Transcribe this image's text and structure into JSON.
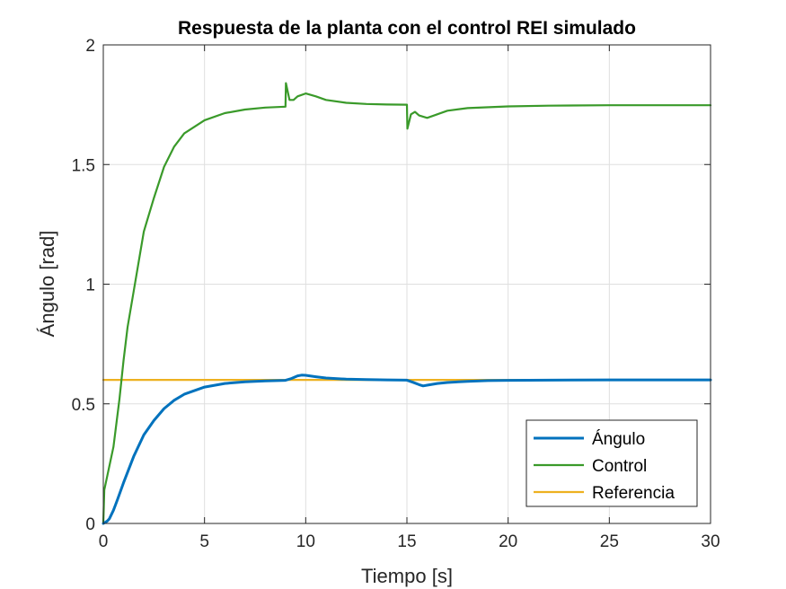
{
  "chart_data": {
    "type": "line",
    "title": "Respuesta de la planta con el control REI simulado",
    "xlabel": "Tiempo [s]",
    "ylabel": "Ángulo [rad]",
    "xlim": [
      0,
      30
    ],
    "ylim": [
      0,
      2
    ],
    "xticks": [
      0,
      5,
      10,
      15,
      20,
      25,
      30
    ],
    "yticks": [
      0,
      0.5,
      1,
      1.5,
      2
    ],
    "xtick_labels": [
      "0",
      "5",
      "10",
      "15",
      "20",
      "25",
      "30"
    ],
    "ytick_labels": [
      "0",
      "0.5",
      "1",
      "1.5",
      "2"
    ],
    "grid": true,
    "legend_position": "bottom-right",
    "series": [
      {
        "name": "Ángulo",
        "color": "#0072bd",
        "x": [
          0,
          0.1,
          0.2,
          0.3,
          0.5,
          0.7,
          1.0,
          1.5,
          2.0,
          2.5,
          3.0,
          3.5,
          4.0,
          5.0,
          6.0,
          7.0,
          8.0,
          9.0,
          9.3,
          9.6,
          9.8,
          10.0,
          10.5,
          11.0,
          12.0,
          13.0,
          14.0,
          15.0,
          15.3,
          15.6,
          15.8,
          16.0,
          16.5,
          17.0,
          18.0,
          19.0,
          20.0,
          22.0,
          25.0,
          30.0
        ],
        "y": [
          0,
          0.005,
          0.01,
          0.02,
          0.055,
          0.1,
          0.17,
          0.28,
          0.37,
          0.43,
          0.48,
          0.515,
          0.54,
          0.57,
          0.585,
          0.592,
          0.596,
          0.598,
          0.606,
          0.617,
          0.62,
          0.619,
          0.613,
          0.608,
          0.603,
          0.601,
          0.6,
          0.599,
          0.59,
          0.58,
          0.575,
          0.578,
          0.585,
          0.589,
          0.594,
          0.597,
          0.598,
          0.599,
          0.6,
          0.6
        ]
      },
      {
        "name": "Control",
        "color": "#3a9a2a",
        "x": [
          0,
          0.05,
          0.2,
          0.5,
          0.8,
          1.0,
          1.2,
          1.5,
          2.0,
          2.5,
          3.0,
          3.5,
          4.0,
          5.0,
          6.0,
          7.0,
          8.0,
          9.0,
          9.02,
          9.2,
          9.4,
          9.6,
          10.0,
          10.5,
          11.0,
          12.0,
          13.0,
          14.0,
          15.0,
          15.02,
          15.2,
          15.4,
          15.6,
          16.0,
          16.5,
          17.0,
          18.0,
          20.0,
          22.0,
          25.0,
          30.0
        ],
        "y": [
          0,
          0.14,
          0.2,
          0.32,
          0.52,
          0.68,
          0.82,
          0.97,
          1.22,
          1.36,
          1.49,
          1.575,
          1.63,
          1.685,
          1.715,
          1.73,
          1.738,
          1.742,
          1.84,
          1.77,
          1.77,
          1.785,
          1.797,
          1.785,
          1.77,
          1.758,
          1.753,
          1.751,
          1.75,
          1.65,
          1.71,
          1.72,
          1.705,
          1.695,
          1.71,
          1.725,
          1.736,
          1.743,
          1.746,
          1.748,
          1.748
        ]
      },
      {
        "name": "Referencia",
        "color": "#edb120",
        "x": [
          0,
          30
        ],
        "y": [
          0.6,
          0.6
        ]
      }
    ]
  }
}
